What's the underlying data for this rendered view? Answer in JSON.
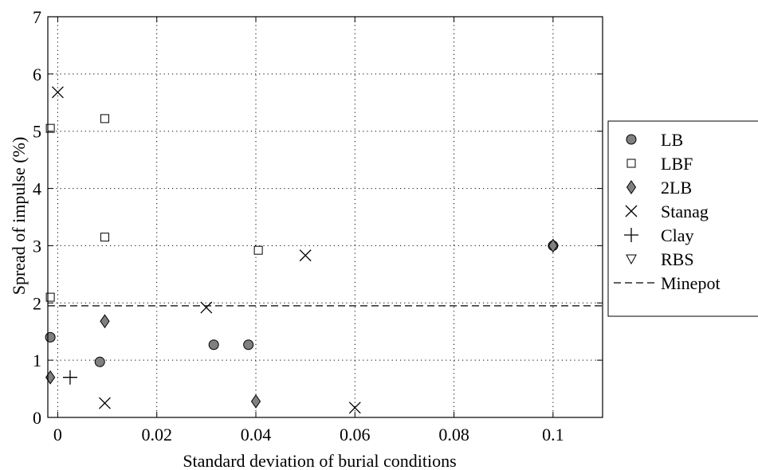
{
  "chart_data": {
    "type": "scatter",
    "xlabel": "Standard deviation of burial conditions",
    "ylabel": "Spread of impulse (%)",
    "xlim": [
      -0.002,
      0.11
    ],
    "ylim": [
      0,
      7
    ],
    "x_ticks": [
      0,
      0.02,
      0.04,
      0.06,
      0.08,
      0.1
    ],
    "x_tick_labels": [
      "0",
      "0.02",
      "0.04",
      "0.06",
      "0.08",
      "0.1"
    ],
    "y_ticks": [
      0,
      1,
      2,
      3,
      4,
      5,
      6,
      7
    ],
    "y_tick_labels": [
      "0",
      "1",
      "2",
      "3",
      "4",
      "5",
      "6",
      "7"
    ],
    "grid": true,
    "legend_position": "outside-right",
    "series": [
      {
        "name": "LB",
        "marker": "circle",
        "color": "#808080",
        "points": [
          [
            -0.0015,
            1.4
          ],
          [
            0.0085,
            0.97
          ],
          [
            0.0315,
            1.27
          ],
          [
            0.0385,
            1.27
          ],
          [
            0.1,
            3.0
          ]
        ]
      },
      {
        "name": "LBF",
        "marker": "square",
        "color": "#ffffff",
        "points": [
          [
            -0.0015,
            5.05
          ],
          [
            0.0095,
            5.22
          ],
          [
            0.0095,
            3.15
          ],
          [
            0.0405,
            2.92
          ],
          [
            -0.0015,
            2.1
          ]
        ]
      },
      {
        "name": "2LB",
        "marker": "diamond",
        "color": "#808080",
        "points": [
          [
            -0.0015,
            0.7
          ],
          [
            0.0095,
            1.68
          ],
          [
            0.04,
            0.28
          ],
          [
            0.1,
            3.0
          ]
        ]
      },
      {
        "name": "Stanag",
        "marker": "x",
        "color": "#000000",
        "points": [
          [
            0.0,
            5.68
          ],
          [
            0.0095,
            0.25
          ],
          [
            0.03,
            1.92
          ],
          [
            0.05,
            2.83
          ],
          [
            0.06,
            0.17
          ]
        ]
      },
      {
        "name": "Clay",
        "marker": "plus",
        "color": "#000000",
        "points": [
          [
            0.0025,
            0.7
          ]
        ]
      },
      {
        "name": "RBS",
        "marker": "triangle-down",
        "color": "#ffffff",
        "points": []
      }
    ],
    "reference_line": {
      "name": "Minepot",
      "y": 1.95,
      "style": "dashed",
      "color": "#000000"
    }
  }
}
